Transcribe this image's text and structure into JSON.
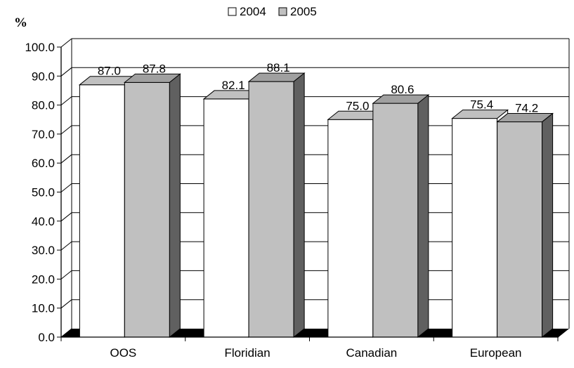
{
  "unit_label": "%",
  "chart_data": {
    "type": "bar",
    "title": "",
    "xlabel": "",
    "ylabel": "%",
    "categories": [
      "OOS",
      "Floridian",
      "Canadian",
      "European"
    ],
    "series": [
      {
        "name": "2004",
        "values": [
          87.0,
          82.1,
          75.0,
          75.4
        ],
        "color": "#ffffff"
      },
      {
        "name": "2005",
        "values": [
          87.8,
          88.1,
          80.6,
          74.2
        ],
        "color": "#c0c0c0"
      }
    ],
    "ylim": [
      0,
      100
    ],
    "yticks": [
      "0.0",
      "10.0",
      "20.0",
      "30.0",
      "40.0",
      "50.0",
      "60.0",
      "70.0",
      "80.0",
      "90.0",
      "100.0"
    ],
    "grid": true,
    "three_d": true,
    "legend_position": "top-center",
    "colors": {
      "side_2004": "#c0c0c0",
      "side_2005": "#606060",
      "floor": "#000000",
      "grid": "#000000"
    }
  }
}
